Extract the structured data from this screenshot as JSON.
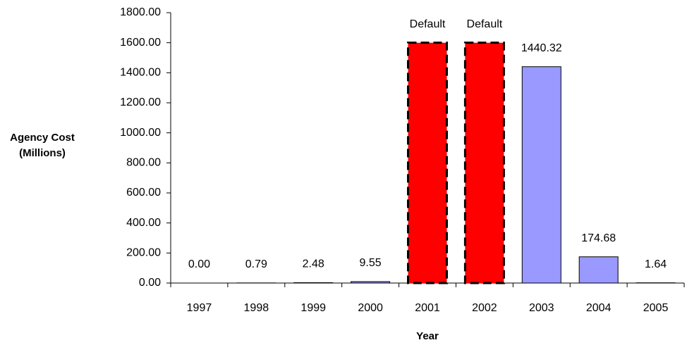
{
  "chart_data": {
    "type": "bar",
    "xlabel": "Year",
    "ylabel": "Agency Cost (Millions)",
    "categories": [
      "1997",
      "1998",
      "1999",
      "2000",
      "2001",
      "2002",
      "2003",
      "2004",
      "2005"
    ],
    "values": [
      0,
      0.79,
      2.48,
      9.55,
      1600,
      1600,
      1440.32,
      174.68,
      1.64
    ],
    "value_labels": [
      "0.00",
      "0.79",
      "2.48",
      "9.55",
      "Default",
      "Default",
      "1440.32",
      "174.68",
      "1.64"
    ],
    "colors": [
      "#9999ff",
      "#9999ff",
      "#9999ff",
      "#9999ff",
      "#ff0000",
      "#ff0000",
      "#9999ff",
      "#9999ff",
      "#9999ff"
    ],
    "border_styles": [
      "solid",
      "solid",
      "solid",
      "solid",
      "dashed",
      "dashed",
      "solid",
      "solid",
      "solid"
    ],
    "ylim": [
      0,
      1800
    ],
    "yticks": [
      {
        "value": 0,
        "label": "0.00"
      },
      {
        "value": 200,
        "label": "200.00"
      },
      {
        "value": 400,
        "label": "400.00"
      },
      {
        "value": 600,
        "label": "600.00"
      },
      {
        "value": 800,
        "label": "800.00"
      },
      {
        "value": 1000,
        "label": "1000.00"
      },
      {
        "value": 1200,
        "label": "1200.00"
      },
      {
        "value": 1400,
        "label": "1400.00"
      },
      {
        "value": 1600,
        "label": "1600.00"
      },
      {
        "value": 1800,
        "label": "1800.00"
      }
    ],
    "grid": false
  }
}
